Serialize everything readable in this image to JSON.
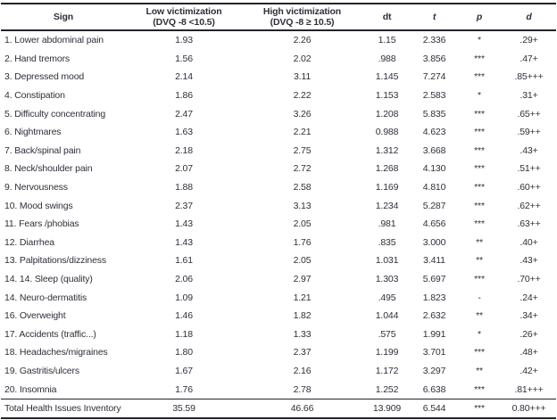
{
  "table": {
    "headers": {
      "sign": "Sign",
      "low": "Low victimization",
      "low_sub": "(DVQ -8 <10.5)",
      "high": "High victimization",
      "high_sub": "(DVQ -8 ≥ 10.5)",
      "dt": "dt",
      "t": "t",
      "p": "p",
      "d": "d"
    },
    "rows": [
      {
        "sign": "1. Lower abdominal pain",
        "low": "1.93",
        "high": "2.26",
        "dt": "1.15",
        "t": "2.336",
        "p": "*",
        "d": ".29+"
      },
      {
        "sign": "2. Hand tremors",
        "low": "1.56",
        "high": "2.02",
        "dt": ".988",
        "t": "3.856",
        "p": "***",
        "d": ".47+"
      },
      {
        "sign": "3. Depressed mood",
        "low": "2.14",
        "high": "3.11",
        "dt": "1.145",
        "t": "7.274",
        "p": "***",
        "d": ".85+++"
      },
      {
        "sign": "4. Constipation",
        "low": "1.86",
        "high": "2.22",
        "dt": "1.153",
        "t": "2.583",
        "p": "*",
        "d": ".31+"
      },
      {
        "sign": "5. Difficulty concentrating",
        "low": "2.47",
        "high": "3.26",
        "dt": "1.208",
        "t": "5.835",
        "p": "***",
        "d": ".65++"
      },
      {
        "sign": "6. Nightmares",
        "low": "1.63",
        "high": "2.21",
        "dt": "0.988",
        "t": "4.623",
        "p": "***",
        "d": ".59++"
      },
      {
        "sign": "7. Back/spinal pain",
        "low": "2.18",
        "high": "2.75",
        "dt": "1.312",
        "t": "3.668",
        "p": "***",
        "d": ".43+"
      },
      {
        "sign": "8. Neck/shoulder pain",
        "low": "2.07",
        "high": "2.72",
        "dt": "1.268",
        "t": "4.130",
        "p": "***",
        "d": ".51++"
      },
      {
        "sign": "9. Nervousness",
        "low": "1.88",
        "high": "2.58",
        "dt": "1.169",
        "t": "4.810",
        "p": "***",
        "d": ".60++"
      },
      {
        "sign": "10. Mood swings",
        "low": "2.37",
        "high": "3.13",
        "dt": "1.234",
        "t": "5.287",
        "p": "***",
        "d": ".62++"
      },
      {
        "sign": "11. Fears /phobias",
        "low": "1.43",
        "high": "2.05",
        "dt": ".981",
        "t": "4.656",
        "p": "***",
        "d": ".63++"
      },
      {
        "sign": "12. Diarrhea",
        "low": "1.43",
        "high": "1.76",
        "dt": ".835",
        "t": "3.000",
        "p": "**",
        "d": ".40+"
      },
      {
        "sign": "13. Palpitations/dizziness",
        "low": "1.61",
        "high": "2.05",
        "dt": "1.031",
        "t": "3.411",
        "p": "**",
        "d": ".43+"
      },
      {
        "sign": "14. 14. Sleep (quality)",
        "low": "2.06",
        "high": "2.97",
        "dt": "1.303",
        "t": "5.697",
        "p": "***",
        "d": ".70++"
      },
      {
        "sign": "14. Neuro-dermatitis",
        "low": "1.09",
        "high": "1.21",
        "dt": ".495",
        "t": "1.823",
        "p": "-",
        "d": ".24+"
      },
      {
        "sign": "16. Overweight",
        "low": "1.46",
        "high": "1.82",
        "dt": "1.044",
        "t": "2.632",
        "p": "**",
        "d": ".34+"
      },
      {
        "sign": "17. Accidents (traffic...)",
        "low": "1.18",
        "high": "1.33",
        "dt": ".575",
        "t": "1.991",
        "p": "*",
        "d": ".26+"
      },
      {
        "sign": "18. Headaches/migraines",
        "low": "1.80",
        "high": "2.37",
        "dt": "1.199",
        "t": "3.701",
        "p": "***",
        "d": ".48+"
      },
      {
        "sign": "19. Gastritis/ulcers",
        "low": "1.67",
        "high": "2.16",
        "dt": "1.172",
        "t": "3.297",
        "p": "**",
        "d": ".42+"
      },
      {
        "sign": "20. Insomnia",
        "low": "1.76",
        "high": "2.78",
        "dt": "1.252",
        "t": "6.638",
        "p": "***",
        "d": ".81+++"
      }
    ],
    "total_row": {
      "sign": "Total Health Issues Inventory",
      "low": "35.59",
      "high": "46.66",
      "dt": "13.909",
      "t": "6.544",
      "p": "***",
      "d": "0.80+++"
    }
  },
  "colors": {
    "text": "#2f2f3a",
    "border": "#23232b",
    "background": "#ffffff"
  }
}
